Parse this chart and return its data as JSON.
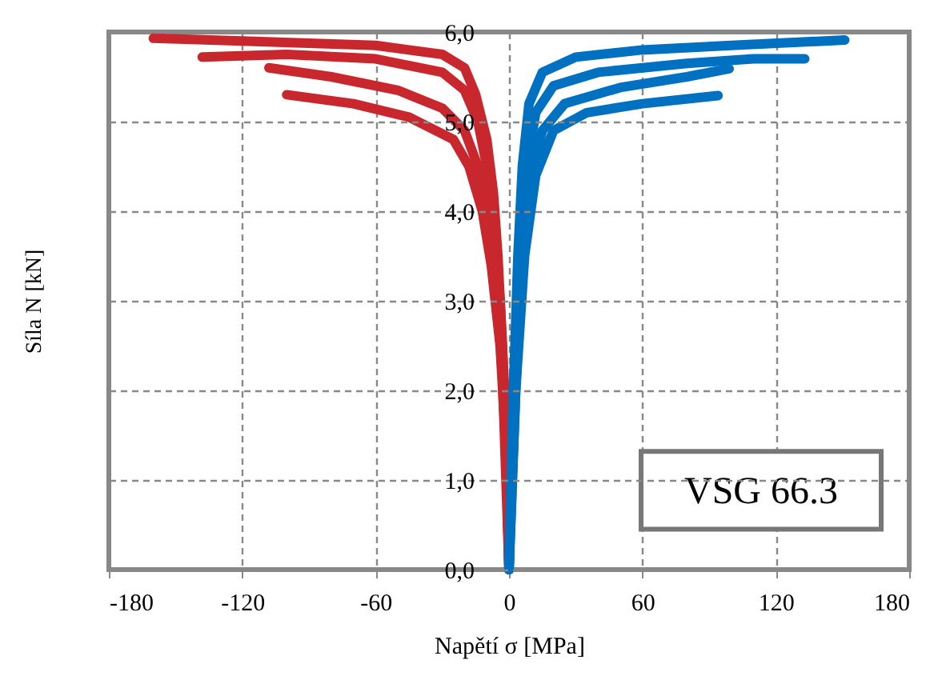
{
  "chart_data": {
    "type": "line",
    "xlabel": "Napětí σ [MPa]",
    "ylabel": "Síla N [kN]",
    "xlim": [
      -180,
      180
    ],
    "xticks": [
      -180,
      -120,
      -60,
      0,
      60,
      120,
      180
    ],
    "ylim": [
      0,
      6
    ],
    "yticks": [
      {
        "value": 0,
        "label": "0,0"
      },
      {
        "value": 1,
        "label": "1,0"
      },
      {
        "value": 2,
        "label": "2,0"
      },
      {
        "value": 3,
        "label": "3,0"
      },
      {
        "value": 4,
        "label": "4,0"
      },
      {
        "value": 5,
        "label": "5,0"
      },
      {
        "value": 6,
        "label": "6,0"
      }
    ],
    "grid": true,
    "line_style": "solid",
    "marker": "none",
    "annotations": [
      "VSG 66.3"
    ],
    "series": [
      {
        "color": "#c8282d",
        "x": [
          0,
          -1.5,
          -3,
          -5,
          -7,
          -10,
          -15,
          -20,
          -30,
          -60,
          -120,
          -160
        ],
        "values": [
          0,
          1.5,
          2.5,
          3.5,
          4.2,
          4.8,
          5.3,
          5.6,
          5.75,
          5.85,
          5.9,
          5.93
        ]
      },
      {
        "color": "#c8282d",
        "x": [
          0,
          -2,
          -4,
          -7,
          -10,
          -14,
          -20,
          -30,
          -60,
          -100,
          -138
        ],
        "values": [
          0,
          2,
          3,
          3.9,
          4.5,
          5,
          5.35,
          5.55,
          5.7,
          5.75,
          5.72
        ]
      },
      {
        "color": "#c8282d",
        "x": [
          0,
          -3,
          -6,
          -10,
          -14,
          -20,
          -30,
          -50,
          -80,
          -108
        ],
        "values": [
          0,
          2.2,
          3.2,
          4,
          4.5,
          4.9,
          5.15,
          5.35,
          5.5,
          5.6
        ]
      },
      {
        "color": "#c8282d",
        "x": [
          0,
          -1,
          -4,
          -8,
          -12,
          -18,
          -25,
          -45,
          -70,
          -100
        ],
        "values": [
          0,
          1.2,
          2.5,
          3.4,
          4,
          4.5,
          4.8,
          5.05,
          5.2,
          5.3
        ]
      },
      {
        "color": "#0070c0",
        "x": [
          0,
          2,
          4,
          6,
          9,
          15,
          30,
          60,
          100,
          151
        ],
        "values": [
          0,
          2,
          3.5,
          4.5,
          5.2,
          5.55,
          5.72,
          5.8,
          5.85,
          5.91
        ]
      },
      {
        "color": "#0070c0",
        "x": [
          0,
          2,
          5,
          8,
          12,
          20,
          40,
          80,
          110,
          133
        ],
        "values": [
          0,
          2,
          3.5,
          4.5,
          5.1,
          5.4,
          5.55,
          5.65,
          5.7,
          5.7
        ]
      },
      {
        "color": "#0070c0",
        "x": [
          0,
          3,
          6,
          10,
          15,
          25,
          50,
          80,
          99
        ],
        "values": [
          0,
          2,
          3.5,
          4.4,
          4.9,
          5.2,
          5.38,
          5.5,
          5.59
        ]
      },
      {
        "color": "#0070c0",
        "x": [
          0,
          3,
          7,
          12,
          20,
          35,
          60,
          94
        ],
        "values": [
          0,
          2,
          3.5,
          4.4,
          4.9,
          5.1,
          5.2,
          5.29
        ]
      }
    ]
  }
}
